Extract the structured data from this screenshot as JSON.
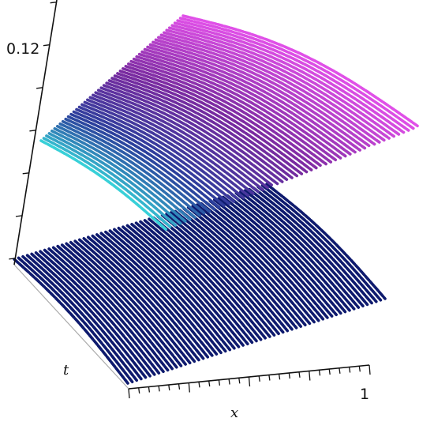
{
  "chart_data": {
    "type": "surface",
    "title": "",
    "xlabel": "x",
    "ylabel": "t",
    "zlabel": "",
    "x_tick_labels": [
      "1"
    ],
    "z_tick_labels": [
      "0.12"
    ],
    "xlim": [
      0,
      1
    ],
    "zlim": [
      0,
      0.12
    ],
    "series": [
      {
        "surface": "upper",
        "colormap": [
          "#38d0d8",
          "#2a3f9c",
          "#7a2aa0",
          "#e050e8"
        ],
        "approx_z_range": [
          0.06,
          0.12
        ]
      },
      {
        "surface": "lower",
        "color": "#0e1a6e",
        "approx_z_range": [
          0.0,
          0.04
        ]
      }
    ]
  }
}
